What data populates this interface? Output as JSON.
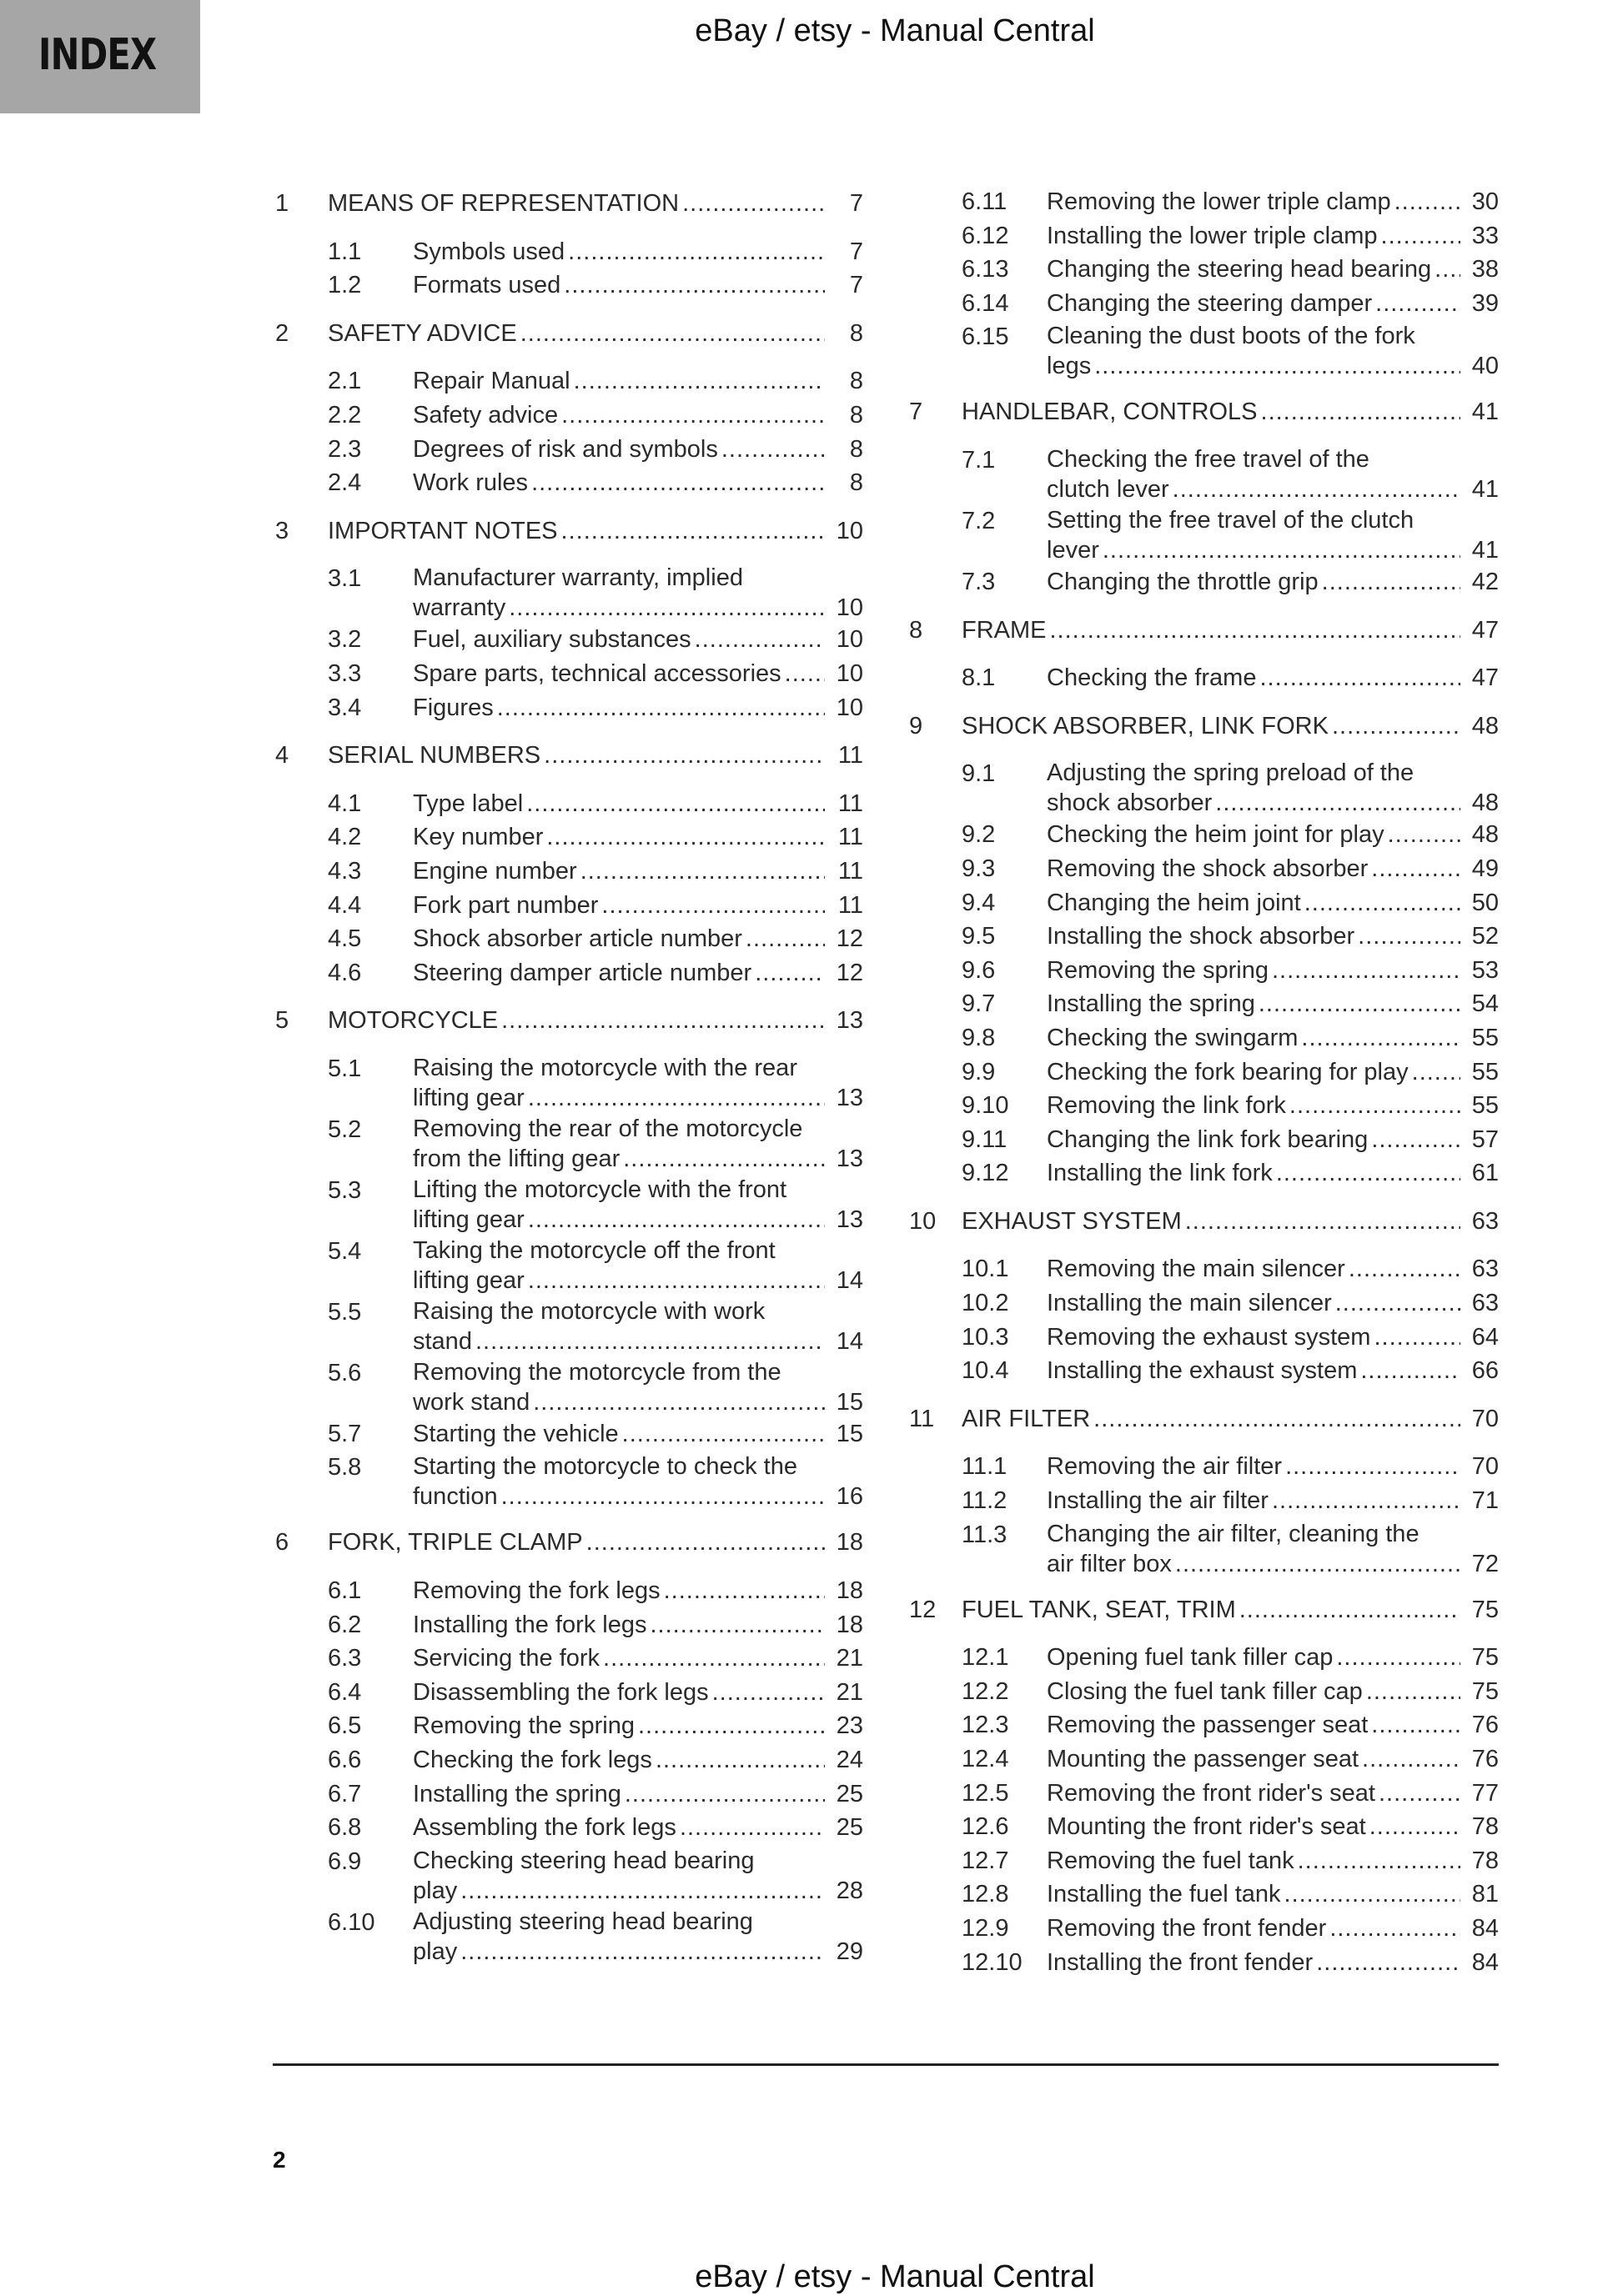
{
  "header": {
    "tab_label": "INDEX",
    "watermark_top": "eBay / etsy - Manual Central",
    "watermark_bottom": "eBay / etsy - Manual Central",
    "page_number": "2"
  },
  "toc": {
    "left": [
      {
        "level": "chapter",
        "num": "1",
        "lines": [
          "MEANS OF REPRESENTATION"
        ],
        "page": "7"
      },
      {
        "level": "sub",
        "num": "1.1",
        "lines": [
          "Symbols used"
        ],
        "page": "7"
      },
      {
        "level": "sub",
        "num": "1.2",
        "lines": [
          "Formats used"
        ],
        "page": "7"
      },
      {
        "level": "chapter",
        "num": "2",
        "lines": [
          "SAFETY ADVICE"
        ],
        "page": "8"
      },
      {
        "level": "sub",
        "num": "2.1",
        "lines": [
          "Repair Manual"
        ],
        "page": "8"
      },
      {
        "level": "sub",
        "num": "2.2",
        "lines": [
          "Safety advice"
        ],
        "page": "8"
      },
      {
        "level": "sub",
        "num": "2.3",
        "lines": [
          "Degrees of risk and symbols"
        ],
        "page": "8"
      },
      {
        "level": "sub",
        "num": "2.4",
        "lines": [
          "Work rules"
        ],
        "page": "8"
      },
      {
        "level": "chapter",
        "num": "3",
        "lines": [
          "IMPORTANT NOTES"
        ],
        "page": "10"
      },
      {
        "level": "sub",
        "num": "3.1",
        "lines": [
          "Manufacturer warranty, implied",
          "warranty"
        ],
        "page": "10"
      },
      {
        "level": "sub",
        "num": "3.2",
        "lines": [
          "Fuel, auxiliary substances"
        ],
        "page": "10"
      },
      {
        "level": "sub",
        "num": "3.3",
        "lines": [
          "Spare parts, technical accessories"
        ],
        "page": "10"
      },
      {
        "level": "sub",
        "num": "3.4",
        "lines": [
          "Figures"
        ],
        "page": "10"
      },
      {
        "level": "chapter",
        "num": "4",
        "lines": [
          "SERIAL NUMBERS"
        ],
        "page": "11"
      },
      {
        "level": "sub",
        "num": "4.1",
        "lines": [
          "Type label"
        ],
        "page": "11"
      },
      {
        "level": "sub",
        "num": "4.2",
        "lines": [
          "Key number"
        ],
        "page": "11"
      },
      {
        "level": "sub",
        "num": "4.3",
        "lines": [
          "Engine number"
        ],
        "page": "11"
      },
      {
        "level": "sub",
        "num": "4.4",
        "lines": [
          "Fork part number"
        ],
        "page": "11"
      },
      {
        "level": "sub",
        "num": "4.5",
        "lines": [
          "Shock absorber article number"
        ],
        "page": "12"
      },
      {
        "level": "sub",
        "num": "4.6",
        "lines": [
          "Steering damper article number"
        ],
        "page": "12"
      },
      {
        "level": "chapter",
        "num": "5",
        "lines": [
          "MOTORCYCLE"
        ],
        "page": "13"
      },
      {
        "level": "sub",
        "num": "5.1",
        "lines": [
          "Raising the motorcycle with the rear",
          "lifting gear"
        ],
        "page": "13"
      },
      {
        "level": "sub",
        "num": "5.2",
        "lines": [
          "Removing the rear of the motorcycle",
          "from the lifting gear"
        ],
        "page": "13"
      },
      {
        "level": "sub",
        "num": "5.3",
        "lines": [
          "Lifting the motorcycle with the front",
          "lifting gear"
        ],
        "page": "13"
      },
      {
        "level": "sub",
        "num": "5.4",
        "lines": [
          "Taking the motorcycle off the front",
          "lifting gear"
        ],
        "page": "14"
      },
      {
        "level": "sub",
        "num": "5.5",
        "lines": [
          "Raising the motorcycle with work",
          "stand"
        ],
        "page": "14"
      },
      {
        "level": "sub",
        "num": "5.6",
        "lines": [
          "Removing the motorcycle from the",
          "work stand"
        ],
        "page": "15"
      },
      {
        "level": "sub",
        "num": "5.7",
        "lines": [
          "Starting the vehicle"
        ],
        "page": "15"
      },
      {
        "level": "sub",
        "num": "5.8",
        "lines": [
          "Starting the motorcycle to check the",
          "function"
        ],
        "page": "16"
      },
      {
        "level": "chapter",
        "num": "6",
        "lines": [
          "FORK, TRIPLE CLAMP"
        ],
        "page": "18"
      },
      {
        "level": "sub",
        "num": "6.1",
        "lines": [
          "Removing the fork legs"
        ],
        "page": "18"
      },
      {
        "level": "sub",
        "num": "6.2",
        "lines": [
          "Installing the fork legs"
        ],
        "page": "18"
      },
      {
        "level": "sub",
        "num": "6.3",
        "lines": [
          "Servicing the fork"
        ],
        "page": "21"
      },
      {
        "level": "sub",
        "num": "6.4",
        "lines": [
          "Disassembling the fork legs"
        ],
        "page": "21"
      },
      {
        "level": "sub",
        "num": "6.5",
        "lines": [
          "Removing the spring"
        ],
        "page": "23"
      },
      {
        "level": "sub",
        "num": "6.6",
        "lines": [
          "Checking the fork legs"
        ],
        "page": "24"
      },
      {
        "level": "sub",
        "num": "6.7",
        "lines": [
          "Installing the spring"
        ],
        "page": "25"
      },
      {
        "level": "sub",
        "num": "6.8",
        "lines": [
          "Assembling the fork legs"
        ],
        "page": "25"
      },
      {
        "level": "sub",
        "num": "6.9",
        "lines": [
          "Checking steering head bearing",
          "play"
        ],
        "page": "28"
      },
      {
        "level": "sub",
        "num": "6.10",
        "lines": [
          "Adjusting steering head bearing",
          "play"
        ],
        "page": "29"
      }
    ],
    "right": [
      {
        "level": "sub",
        "num": "6.11",
        "lines": [
          "Removing the lower triple clamp"
        ],
        "page": "30"
      },
      {
        "level": "sub",
        "num": "6.12",
        "lines": [
          "Installing the lower triple clamp"
        ],
        "page": "33"
      },
      {
        "level": "sub",
        "num": "6.13",
        "lines": [
          "Changing the steering head bearing"
        ],
        "page": "38"
      },
      {
        "level": "sub",
        "num": "6.14",
        "lines": [
          "Changing the steering damper"
        ],
        "page": "39"
      },
      {
        "level": "sub",
        "num": "6.15",
        "lines": [
          "Cleaning the dust boots of the fork",
          "legs"
        ],
        "page": "40"
      },
      {
        "level": "chapter",
        "num": "7",
        "lines": [
          "HANDLEBAR, CONTROLS"
        ],
        "page": "41"
      },
      {
        "level": "sub",
        "num": "7.1",
        "lines": [
          "Checking the free travel of the",
          "clutch lever"
        ],
        "page": "41"
      },
      {
        "level": "sub",
        "num": "7.2",
        "lines": [
          "Setting the free travel of the clutch",
          "lever"
        ],
        "page": "41"
      },
      {
        "level": "sub",
        "num": "7.3",
        "lines": [
          "Changing the throttle grip"
        ],
        "page": "42"
      },
      {
        "level": "chapter",
        "num": "8",
        "lines": [
          "FRAME"
        ],
        "page": "47"
      },
      {
        "level": "sub",
        "num": "8.1",
        "lines": [
          "Checking the frame"
        ],
        "page": "47"
      },
      {
        "level": "chapter",
        "num": "9",
        "lines": [
          "SHOCK ABSORBER, LINK FORK"
        ],
        "page": "48"
      },
      {
        "level": "sub",
        "num": "9.1",
        "lines": [
          "Adjusting the spring preload of the",
          "shock absorber"
        ],
        "page": "48"
      },
      {
        "level": "sub",
        "num": "9.2",
        "lines": [
          "Checking the heim joint for play"
        ],
        "page": "48"
      },
      {
        "level": "sub",
        "num": "9.3",
        "lines": [
          "Removing the shock absorber"
        ],
        "page": "49"
      },
      {
        "level": "sub",
        "num": "9.4",
        "lines": [
          "Changing the heim joint"
        ],
        "page": "50"
      },
      {
        "level": "sub",
        "num": "9.5",
        "lines": [
          "Installing the shock absorber"
        ],
        "page": "52"
      },
      {
        "level": "sub",
        "num": "9.6",
        "lines": [
          "Removing the spring"
        ],
        "page": "53"
      },
      {
        "level": "sub",
        "num": "9.7",
        "lines": [
          "Installing the spring"
        ],
        "page": "54"
      },
      {
        "level": "sub",
        "num": "9.8",
        "lines": [
          "Checking the swingarm"
        ],
        "page": "55"
      },
      {
        "level": "sub",
        "num": "9.9",
        "lines": [
          "Checking the fork bearing for play"
        ],
        "page": "55"
      },
      {
        "level": "sub",
        "num": "9.10",
        "lines": [
          "Removing the link fork"
        ],
        "page": "55"
      },
      {
        "level": "sub",
        "num": "9.11",
        "lines": [
          "Changing the link fork bearing"
        ],
        "page": "57"
      },
      {
        "level": "sub",
        "num": "9.12",
        "lines": [
          "Installing the link fork"
        ],
        "page": "61"
      },
      {
        "level": "chapter",
        "num": "10",
        "lines": [
          "EXHAUST SYSTEM"
        ],
        "page": "63"
      },
      {
        "level": "sub",
        "num": "10.1",
        "lines": [
          "Removing the main silencer"
        ],
        "page": "63"
      },
      {
        "level": "sub",
        "num": "10.2",
        "lines": [
          "Installing the main silencer"
        ],
        "page": "63"
      },
      {
        "level": "sub",
        "num": "10.3",
        "lines": [
          "Removing the exhaust system"
        ],
        "page": "64"
      },
      {
        "level": "sub",
        "num": "10.4",
        "lines": [
          "Installing the exhaust system"
        ],
        "page": "66"
      },
      {
        "level": "chapter",
        "num": "11",
        "lines": [
          "AIR FILTER"
        ],
        "page": "70"
      },
      {
        "level": "sub",
        "num": "11.1",
        "lines": [
          "Removing the air filter"
        ],
        "page": "70"
      },
      {
        "level": "sub",
        "num": "11.2",
        "lines": [
          "Installing the air filter"
        ],
        "page": "71"
      },
      {
        "level": "sub",
        "num": "11.3",
        "lines": [
          "Changing the air filter, cleaning the",
          "air filter box"
        ],
        "page": "72"
      },
      {
        "level": "chapter",
        "num": "12",
        "lines": [
          "FUEL TANK, SEAT, TRIM"
        ],
        "page": "75"
      },
      {
        "level": "sub",
        "num": "12.1",
        "lines": [
          "Opening fuel tank filler cap"
        ],
        "page": "75"
      },
      {
        "level": "sub",
        "num": "12.2",
        "lines": [
          "Closing the fuel tank filler cap"
        ],
        "page": "75"
      },
      {
        "level": "sub",
        "num": "12.3",
        "lines": [
          "Removing the passenger seat"
        ],
        "page": "76"
      },
      {
        "level": "sub",
        "num": "12.4",
        "lines": [
          "Mounting the passenger seat"
        ],
        "page": "76"
      },
      {
        "level": "sub",
        "num": "12.5",
        "lines": [
          "Removing the front rider's seat"
        ],
        "page": "77"
      },
      {
        "level": "sub",
        "num": "12.6",
        "lines": [
          "Mounting the front rider's seat"
        ],
        "page": "78"
      },
      {
        "level": "sub",
        "num": "12.7",
        "lines": [
          "Removing the fuel tank"
        ],
        "page": "78"
      },
      {
        "level": "sub",
        "num": "12.8",
        "lines": [
          "Installing the fuel tank"
        ],
        "page": "81"
      },
      {
        "level": "sub",
        "num": "12.9",
        "lines": [
          "Removing the front fender"
        ],
        "page": "84"
      },
      {
        "level": "sub",
        "num": "12.10",
        "lines": [
          "Installing the front fender"
        ],
        "page": "84"
      }
    ]
  }
}
